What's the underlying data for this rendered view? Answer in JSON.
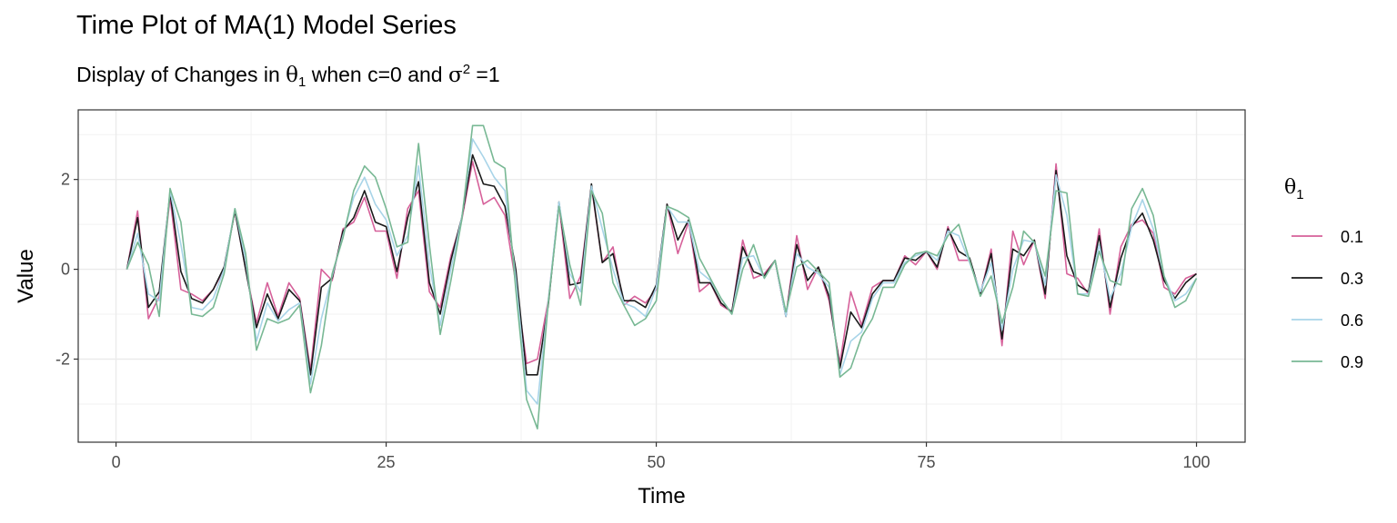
{
  "title": "Time Plot of MA(1) Model Series",
  "subtitle": {
    "prefix": "Display of Changes in ",
    "theta": "θ",
    "theta_sub": "1",
    "middle": " when c=0 and ",
    "sigma": "σ",
    "sigma_sup": "2",
    "suffix": " =1"
  },
  "chart_data": {
    "type": "line",
    "title": "Time Plot of MA(1) Model Series",
    "subtitle": "Display of Changes in θ1 when c=0 and σ2 =1",
    "xlabel": "Time",
    "ylabel": "Value",
    "xlim": [
      -3.5,
      104.5
    ],
    "ylim": [
      -3.85,
      3.55
    ],
    "xticks": [
      0,
      25,
      50,
      75,
      100
    ],
    "xtick_labels": [
      "0",
      "25",
      "50",
      "75",
      "100"
    ],
    "yticks": [
      -2,
      0,
      2
    ],
    "ytick_labels": [
      "-2",
      "0",
      "2"
    ],
    "grid": true,
    "legend": {
      "title": "θ",
      "title_sub": "1",
      "position": "right"
    },
    "x": [
      1,
      2,
      3,
      4,
      5,
      6,
      7,
      8,
      9,
      10,
      11,
      12,
      13,
      14,
      15,
      16,
      17,
      18,
      19,
      20,
      21,
      22,
      23,
      24,
      25,
      26,
      27,
      28,
      29,
      30,
      31,
      32,
      33,
      34,
      35,
      36,
      37,
      38,
      39,
      40,
      41,
      42,
      43,
      44,
      45,
      46,
      47,
      48,
      49,
      50,
      51,
      52,
      53,
      54,
      55,
      56,
      57,
      58,
      59,
      60,
      61,
      62,
      63,
      64,
      65,
      66,
      67,
      68,
      69,
      70,
      71,
      72,
      73,
      74,
      75,
      76,
      77,
      78,
      79,
      80,
      81,
      82,
      83,
      84,
      85,
      86,
      87,
      88,
      89,
      90,
      91,
      92,
      93,
      94,
      95,
      96,
      97,
      98,
      99,
      100
    ],
    "series": [
      {
        "name": "0.1",
        "color": "#d6619a",
        "values": [
          0.0,
          1.3,
          -1.1,
          -0.6,
          1.6,
          -0.45,
          -0.55,
          -0.7,
          -0.45,
          0.0,
          1.3,
          0.0,
          -1.2,
          -0.3,
          -1.05,
          -0.3,
          -0.65,
          -2.25,
          0.0,
          -0.25,
          0.9,
          1.05,
          1.6,
          0.85,
          0.85,
          -0.2,
          1.35,
          1.75,
          -0.5,
          -0.85,
          0.3,
          1.1,
          2.4,
          1.45,
          1.6,
          1.2,
          -0.3,
          -2.1,
          -2.0,
          -0.7,
          1.45,
          -0.65,
          -0.15,
          1.85,
          0.15,
          0.5,
          -0.8,
          -0.6,
          -0.75,
          -0.45,
          1.45,
          0.35,
          1.05,
          -0.5,
          -0.3,
          -0.8,
          -0.95,
          0.65,
          -0.2,
          -0.1,
          0.2,
          -1.05,
          0.75,
          -0.45,
          0.05,
          -0.7,
          -2.1,
          -0.5,
          -1.25,
          -0.4,
          -0.25,
          -0.25,
          0.3,
          0.1,
          0.4,
          0.0,
          0.95,
          0.2,
          0.2,
          -0.55,
          0.45,
          -1.7,
          0.85,
          0.1,
          0.65,
          -0.65,
          2.35,
          -0.1,
          -0.2,
          -0.55,
          0.9,
          -1.0,
          0.5,
          1.0,
          1.1,
          0.8,
          -0.4,
          -0.55,
          -0.2,
          -0.1
        ]
      },
      {
        "name": "0.3",
        "color": "#1a1a1a",
        "values": [
          0.0,
          1.15,
          -0.85,
          -0.5,
          1.7,
          -0.05,
          -0.65,
          -0.75,
          -0.45,
          0.05,
          1.3,
          0.0,
          -1.3,
          -0.55,
          -1.1,
          -0.45,
          -0.7,
          -2.35,
          -0.4,
          -0.2,
          0.85,
          1.15,
          1.75,
          1.05,
          0.95,
          -0.05,
          1.15,
          1.95,
          -0.3,
          -1.0,
          0.2,
          1.15,
          2.55,
          1.9,
          1.85,
          1.4,
          0.0,
          -2.35,
          -2.35,
          -0.8,
          1.5,
          -0.35,
          -0.3,
          1.9,
          0.15,
          0.35,
          -0.7,
          -0.7,
          -0.85,
          -0.35,
          1.45,
          0.65,
          1.1,
          -0.3,
          -0.3,
          -0.75,
          -0.95,
          0.5,
          -0.05,
          -0.15,
          0.2,
          -1.05,
          0.55,
          -0.25,
          0.05,
          -0.6,
          -2.2,
          -0.95,
          -1.3,
          -0.55,
          -0.25,
          -0.25,
          0.25,
          0.2,
          0.4,
          0.05,
          0.9,
          0.4,
          0.25,
          -0.55,
          0.35,
          -1.55,
          0.45,
          0.3,
          0.65,
          -0.55,
          2.2,
          0.3,
          -0.35,
          -0.5,
          0.75,
          -0.85,
          0.25,
          0.95,
          1.25,
          0.65,
          -0.25,
          -0.65,
          -0.3,
          -0.1
        ]
      },
      {
        "name": "0.6",
        "color": "#a8d4e8",
        "values": [
          0.0,
          0.8,
          -0.55,
          -0.7,
          1.75,
          0.55,
          -0.85,
          -0.9,
          -0.65,
          0.0,
          1.35,
          0.2,
          -1.6,
          -0.75,
          -1.15,
          -0.9,
          -0.75,
          -2.55,
          -1.1,
          -0.15,
          0.75,
          1.6,
          2.05,
          1.45,
          1.1,
          0.3,
          0.75,
          2.3,
          0.1,
          -1.25,
          0.0,
          1.15,
          2.9,
          2.5,
          2.05,
          1.75,
          -0.2,
          -2.7,
          -3.0,
          -0.7,
          1.5,
          -0.1,
          -0.5,
          1.85,
          0.9,
          0.0,
          -0.75,
          -0.85,
          -1.05,
          -0.4,
          1.4,
          1.05,
          1.05,
          -0.05,
          -0.25,
          -0.65,
          -1.0,
          0.25,
          0.3,
          -0.2,
          0.2,
          -1.05,
          0.35,
          0.05,
          -0.1,
          -0.4,
          -2.35,
          -1.6,
          -1.4,
          -0.65,
          -0.3,
          -0.3,
          0.15,
          0.3,
          0.4,
          0.2,
          0.85,
          0.75,
          0.15,
          -0.5,
          0.15,
          -1.35,
          0.0,
          0.65,
          0.6,
          -0.35,
          2.1,
          1.2,
          -0.55,
          -0.55,
          0.55,
          -0.65,
          -0.1,
          0.95,
          1.55,
          0.9,
          -0.15,
          -0.7,
          -0.55,
          -0.2
        ]
      },
      {
        "name": "0.9",
        "color": "#78b894",
        "values": [
          0.0,
          0.6,
          0.1,
          -1.05,
          1.8,
          1.05,
          -1.0,
          -1.05,
          -0.85,
          -0.1,
          1.35,
          0.35,
          -1.8,
          -1.1,
          -1.2,
          -1.1,
          -0.8,
          -2.75,
          -1.7,
          -0.1,
          0.7,
          1.75,
          2.3,
          2.05,
          1.35,
          0.5,
          0.6,
          2.8,
          0.55,
          -1.45,
          -0.25,
          1.1,
          3.2,
          3.2,
          2.4,
          2.25,
          -0.45,
          -2.9,
          -3.55,
          -0.75,
          1.4,
          0.1,
          -0.8,
          1.75,
          1.25,
          -0.3,
          -0.8,
          -1.25,
          -1.1,
          -0.7,
          1.4,
          1.3,
          1.15,
          0.25,
          -0.2,
          -0.65,
          -1.0,
          0.0,
          0.55,
          -0.2,
          0.2,
          -0.95,
          0.05,
          0.2,
          -0.05,
          -0.3,
          -2.4,
          -2.2,
          -1.5,
          -1.1,
          -0.4,
          -0.4,
          0.1,
          0.35,
          0.4,
          0.3,
          0.75,
          1.0,
          0.2,
          -0.6,
          -0.15,
          -1.2,
          -0.4,
          0.85,
          0.6,
          -0.15,
          1.75,
          1.7,
          -0.55,
          -0.6,
          0.4,
          -0.25,
          -0.35,
          1.35,
          1.8,
          1.2,
          -0.15,
          -0.85,
          -0.7,
          -0.2
        ]
      }
    ]
  }
}
